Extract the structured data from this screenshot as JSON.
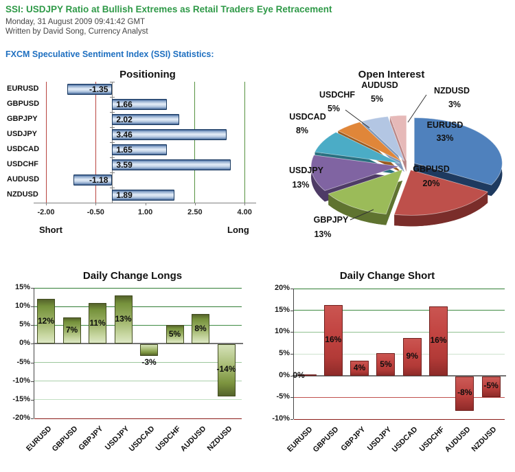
{
  "header": {
    "title": "SSI: USDJPY Ratio at Bullish Extremes as Retail Traders Eye Retracement",
    "date_line": "Monday, 31 August 2009 09:41:42 GMT",
    "byline": "Written by David Song, Currency Analyst",
    "section_heading": "FXCM Speculative Sentiment Index (SSI) Statistics:",
    "title_color": "#2E9947",
    "heading_color": "#1E6FC0"
  },
  "chart_data": [
    {
      "type": "bar",
      "orientation": "horizontal",
      "title": "Positioning",
      "categories": [
        "EURUSD",
        "GBPUSD",
        "GBPJPY",
        "USDJPY",
        "USDCAD",
        "USDCHF",
        "AUDUSD",
        "NZDUSD"
      ],
      "values": [
        -1.35,
        1.66,
        2.02,
        3.46,
        1.65,
        3.59,
        -1.18,
        1.89
      ],
      "value_labels": [
        "-1.35",
        "1.66",
        "2.02",
        "3.46",
        "1.65",
        "3.59",
        "-1.18",
        "1.89"
      ],
      "xlim": [
        -2,
        4
      ],
      "x_ticks": [
        {
          "value": -2.0,
          "label": "-2.00",
          "line_color": "#B9443F"
        },
        {
          "value": -0.5,
          "label": "-0.50",
          "line_color": "#B9443F"
        },
        {
          "value": 1.0,
          "label": "1.00",
          "line_color": null
        },
        {
          "value": 2.5,
          "label": "2.50",
          "line_color": "#55923F"
        },
        {
          "value": 4.0,
          "label": "4.00",
          "line_color": "#55923F"
        }
      ],
      "axis_left_label": "Short",
      "axis_right_label": "Long",
      "bar_color": "#7FA1C9",
      "grid": true,
      "legend": "none"
    },
    {
      "type": "pie",
      "title": "Open Interest",
      "style": "3d-exploded",
      "slices": [
        {
          "label": "EURUSD",
          "pct": 33,
          "pct_label": "33%",
          "color": "#4F81BD",
          "depth_color": "#1E3A5F",
          "label_inside": true
        },
        {
          "label": "GBPUSD",
          "pct": 20,
          "pct_label": "20%",
          "color": "#BE504B",
          "depth_color": "#7A2D2A",
          "label_inside": true
        },
        {
          "label": "GBPJPY",
          "pct": 13,
          "pct_label": "13%",
          "color": "#9BBB59",
          "depth_color": "#5F7330",
          "label_inside": false
        },
        {
          "label": "USDJPY",
          "pct": 13,
          "pct_label": "13%",
          "color": "#8064A2",
          "depth_color": "#4E3B66",
          "label_inside": false
        },
        {
          "label": "USDCAD",
          "pct": 8,
          "pct_label": "8%",
          "color": "#4BACC6",
          "depth_color": "#2A7080",
          "label_inside": false
        },
        {
          "label": "USDCHF",
          "pct": 5,
          "pct_label": "5%",
          "color": "#E08639",
          "depth_color": "#9B5B20",
          "label_inside": false
        },
        {
          "label": "AUDUSD",
          "pct": 5,
          "pct_label": "5%",
          "color": "#B3C6E3",
          "depth_color": "#7D97BA",
          "label_inside": false
        },
        {
          "label": "NZDUSD",
          "pct": 3,
          "pct_label": "3%",
          "color": "#E6B9B8",
          "depth_color": "#B98585",
          "label_inside": false
        }
      ],
      "legend": "none"
    },
    {
      "type": "bar",
      "orientation": "vertical",
      "title": "Daily Change Longs",
      "categories": [
        "EURUSD",
        "GBPUSD",
        "GBPJPY",
        "USDJPY",
        "USDCAD",
        "USDCHF",
        "AUDUSD",
        "NZDUSD"
      ],
      "values": [
        12,
        7,
        11,
        13,
        -3,
        5,
        8,
        -14
      ],
      "value_labels": [
        "12%",
        "7%",
        "11%",
        "13%",
        "-3%",
        "5%",
        "8%",
        "-14%"
      ],
      "ylim": [
        -20,
        15
      ],
      "y_ticks": [
        {
          "value": 15,
          "label": "15%",
          "line_color": "#2F7D33"
        },
        {
          "value": 10,
          "label": "10%",
          "line_color": "#2F7D33"
        },
        {
          "value": 5,
          "label": "5%",
          "line_color": "#3E8A42"
        },
        {
          "value": 0,
          "label": "0%",
          "line_color": "axis"
        },
        {
          "value": -5,
          "label": "-5%",
          "line_color": "#9CC79C"
        },
        {
          "value": -10,
          "label": "-10%",
          "line_color": "#AAD0AA"
        },
        {
          "value": -15,
          "label": "-15%",
          "line_color": "#C2DEC2"
        },
        {
          "value": -20,
          "label": "-20%",
          "line_color": "#8A1A16"
        }
      ],
      "bar_color": "#76923C",
      "grid": true,
      "legend": "none"
    },
    {
      "type": "bar",
      "orientation": "vertical",
      "title": "Daily Change Short",
      "categories": [
        "EURUSD",
        "GBPUSD",
        "GBPJPY",
        "USDJPY",
        "USDCAD",
        "USDCHF",
        "AUDUSD",
        "NZDUSD"
      ],
      "values": [
        0,
        16,
        4,
        5,
        9,
        16,
        -8,
        -5
      ],
      "value_labels": [
        "0%",
        "16%",
        "4%",
        "5%",
        "9%",
        "16%",
        "-8%",
        "-5%"
      ],
      "plot_values": [
        0.3,
        16.2,
        3.4,
        5.1,
        8.6,
        15.9,
        -7.9,
        -4.8
      ],
      "ylim": [
        -10,
        20
      ],
      "y_ticks": [
        {
          "value": 20,
          "label": "20%",
          "line_color": "#2F7D33"
        },
        {
          "value": 15,
          "label": "15%",
          "line_color": "#3E8A42"
        },
        {
          "value": 10,
          "label": "10%",
          "line_color": "#8FBF8F"
        },
        {
          "value": 5,
          "label": "5%",
          "line_color": "#CDE2CD"
        },
        {
          "value": 0,
          "label": "0%",
          "line_color": "axis"
        },
        {
          "value": -5,
          "label": "-5%",
          "line_color": "#C0504D"
        },
        {
          "value": -10,
          "label": "-10%",
          "line_color": "#8A1A16"
        }
      ],
      "bar_color": "#C0504D",
      "grid": true,
      "legend": "none"
    }
  ]
}
